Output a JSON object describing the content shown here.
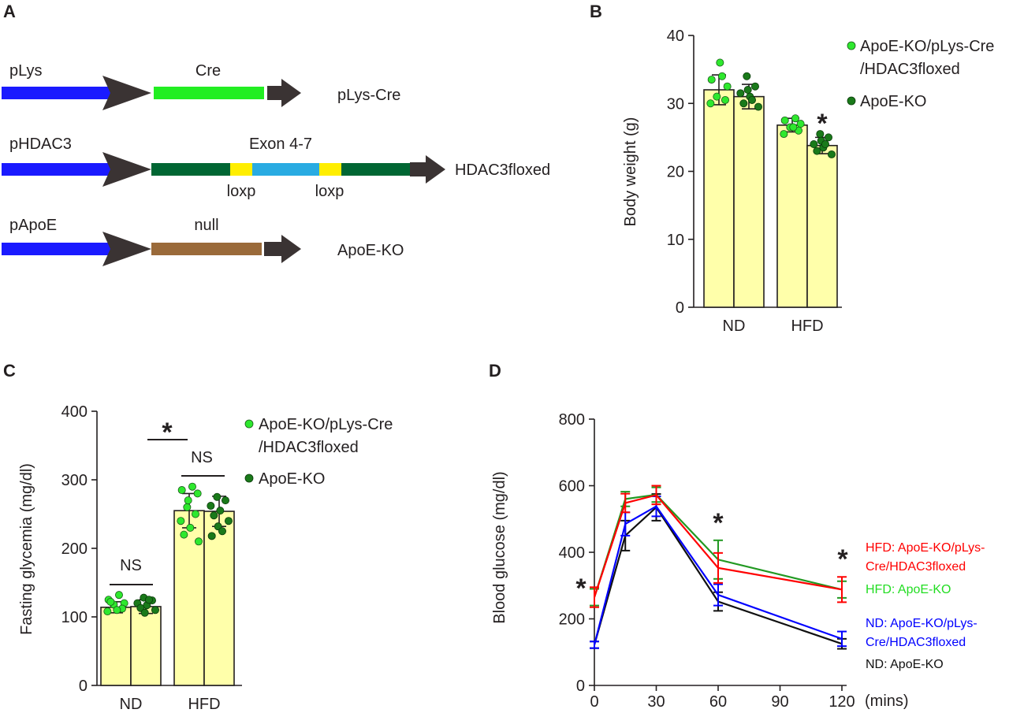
{
  "panel_a": {
    "letter": "A",
    "rows": [
      {
        "promoter": "pLys",
        "segment_label": "Cre",
        "result": "pLys-Cre"
      },
      {
        "promoter": "pHDAC3",
        "segment_label": "Exon 4-7",
        "loxp_left": "loxp",
        "loxp_right": "loxp",
        "result": "HDAC3floxed"
      },
      {
        "promoter": "pApoE",
        "segment_label": "null",
        "result": "ApoE-KO"
      }
    ],
    "colors": {
      "promoter": "#1a1aff",
      "arrow": "#3a3333",
      "cre": "#22ee22",
      "exon_dark": "#006633",
      "exon_light": "#29abe2",
      "loxp": "#ffee00",
      "null": "#9a6a3a"
    }
  },
  "chart_data": [
    {
      "panel": "B",
      "type": "bar",
      "ylabel": "Body weight (g)",
      "ylim": [
        0,
        40
      ],
      "yticks": [
        0,
        10,
        20,
        30,
        40
      ],
      "categories": [
        "ND",
        "HFD"
      ],
      "series": [
        {
          "name": "ApoE-KO/pLys-Cre/HDAC3floxed",
          "values": [
            32.0,
            26.8
          ],
          "errors": [
            2.2,
            1.0
          ],
          "color": "#2ee82e",
          "points": [
            [
              34.0,
              33.5,
              32.5,
              31.0,
              30.5,
              30.0,
              36.0
            ],
            [
              27.8,
              27.5,
              27.0,
              26.5,
              26.0,
              25.5,
              26.5
            ]
          ]
        },
        {
          "name": "ApoE-KO",
          "values": [
            31.0,
            23.8
          ],
          "errors": [
            1.8,
            1.2
          ],
          "color": "#1a7a1a",
          "points": [
            [
              34.0,
              32.5,
              31.5,
              31.0,
              30.0,
              29.5,
              32.0,
              30.5
            ],
            [
              25.5,
              25.0,
              24.0,
              23.5,
              23.0,
              22.5,
              24.5,
              24.0
            ]
          ]
        }
      ],
      "bar_fill": "#ffffaa",
      "legend": [
        "ApoE-KO/pLys-Cre",
        "/HDAC3floxed",
        "ApoE-KO"
      ],
      "annotations": [
        "*"
      ]
    },
    {
      "panel": "C",
      "type": "bar",
      "ylabel": "Fasting glycemia (mg/dl)",
      "ylim": [
        0,
        400
      ],
      "yticks": [
        0,
        100,
        200,
        300,
        400
      ],
      "categories": [
        "ND",
        "HFD"
      ],
      "series": [
        {
          "name": "ApoE-KO/pLys-Cre/HDAC3floxed",
          "values": [
            114,
            255
          ],
          "errors": [
            8,
            25
          ],
          "color": "#2ee82e",
          "points": [
            [
              132,
              125,
              120,
              118,
              112,
              108,
              110,
              122
            ],
            [
              290,
              285,
              280,
              260,
              250,
              240,
              230,
              220,
              210,
              270
            ]
          ]
        },
        {
          "name": "ApoE-KO",
          "values": [
            115,
            254
          ],
          "errors": [
            10,
            22
          ],
          "color": "#1a7a1a",
          "points": [
            [
              128,
              124,
              120,
              117,
              113,
              110,
              106,
              125
            ],
            [
              275,
              270,
              262,
              255,
              248,
              240,
              232,
              225,
              218
            ]
          ]
        }
      ],
      "bar_fill": "#ffffaa",
      "legend": [
        "ApoE-KO/pLys-Cre",
        "/HDAC3floxed",
        "ApoE-KO"
      ],
      "annotations": [
        "NS",
        "NS",
        "*"
      ]
    },
    {
      "panel": "D",
      "type": "line",
      "ylabel": "Blood glucose (mg/dl)",
      "xlabel": "(mins)",
      "xlim": [
        0,
        120
      ],
      "ylim": [
        0,
        800
      ],
      "xticks": [
        0,
        30,
        60,
        90,
        120
      ],
      "yticks": [
        0,
        200,
        400,
        600,
        800
      ],
      "series": [
        {
          "name": "HFD: ApoE-KO/pLys-Cre/HDAC3floxed",
          "color": "#ff0000",
          "x": [
            0,
            15,
            30,
            60,
            120
          ],
          "y": [
            265,
            548,
            572,
            353,
            288
          ],
          "err": [
            30,
            28,
            28,
            45,
            38
          ]
        },
        {
          "name": "HFD: ApoE-KO",
          "color": "#229922",
          "x": [
            0,
            15,
            30,
            60,
            120
          ],
          "y": [
            265,
            560,
            573,
            378,
            288
          ],
          "err": [
            25,
            22,
            22,
            58,
            25
          ]
        },
        {
          "name": "ND: ApoE-KO/pLys-Cre/HDAC3floxed",
          "color": "#0000ff",
          "x": [
            0,
            15,
            30,
            60,
            120
          ],
          "y": [
            122,
            485,
            538,
            272,
            140
          ],
          "err": [
            10,
            35,
            30,
            32,
            22
          ]
        },
        {
          "name": "ND: ApoE-KO",
          "color": "#111111",
          "x": [
            0,
            15,
            30,
            60,
            120
          ],
          "y": [
            122,
            450,
            535,
            252,
            125
          ],
          "err": [
            10,
            45,
            40,
            28,
            15
          ]
        }
      ],
      "legend": [
        "HFD: ApoE-KO/pLys-",
        "Cre/HDAC3floxed",
        "HFD: ApoE-KO",
        "ND: ApoE-KO/pLys-",
        "Cre/HDAC3floxed",
        "ND: ApoE-KO"
      ],
      "annotations": [
        "*",
        "*",
        "*"
      ]
    }
  ],
  "panel_letters": {
    "b": "B",
    "c": "C",
    "d": "D"
  }
}
